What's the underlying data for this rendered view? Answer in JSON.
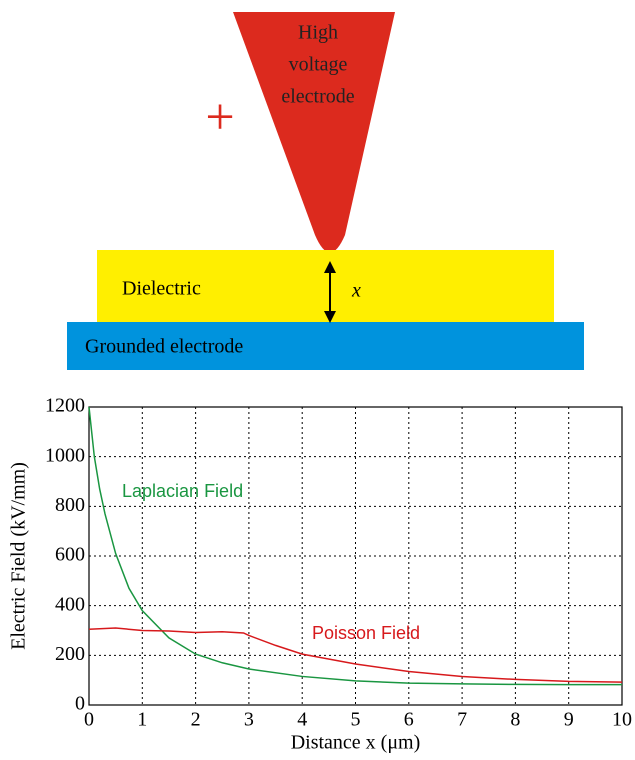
{
  "diagram": {
    "electrode": [
      "High",
      "voltage",
      "electrode"
    ],
    "plus": "+",
    "dielectric": "Dielectric",
    "gap": "x",
    "ground": "Grounded electrode"
  },
  "chart_data": {
    "type": "line",
    "x_label": "Distance x (μm)",
    "y_label": "Electric Field (kV/mm)",
    "xlim": [
      0,
      10
    ],
    "xticks": [
      0,
      1,
      2,
      3,
      4,
      5,
      6,
      7,
      8,
      9,
      10
    ],
    "ylim": [
      0,
      1200
    ],
    "yticks": [
      0,
      200,
      400,
      600,
      800,
      1000,
      1200
    ],
    "grid": true,
    "series": [
      {
        "name": "Laplacian Field",
        "color": "#1a9641",
        "x": [
          0,
          0.1,
          0.2,
          0.3,
          0.5,
          0.75,
          1,
          1.5,
          2,
          2.5,
          3,
          4,
          5,
          6,
          7,
          8,
          9,
          10
        ],
        "values": [
          1200,
          1000,
          870,
          770,
          610,
          470,
          380,
          270,
          205,
          170,
          145,
          115,
          97,
          88,
          85,
          83,
          82,
          82
        ]
      },
      {
        "name": "Poisson Field",
        "color": "#d7191c",
        "x": [
          0,
          0.5,
          1,
          1.5,
          2,
          2.5,
          2.9,
          3,
          3.5,
          4,
          5,
          6,
          7,
          8,
          9,
          10
        ],
        "values": [
          305,
          310,
          300,
          298,
          292,
          295,
          290,
          280,
          240,
          205,
          165,
          135,
          115,
          103,
          95,
          92
        ]
      }
    ]
  }
}
